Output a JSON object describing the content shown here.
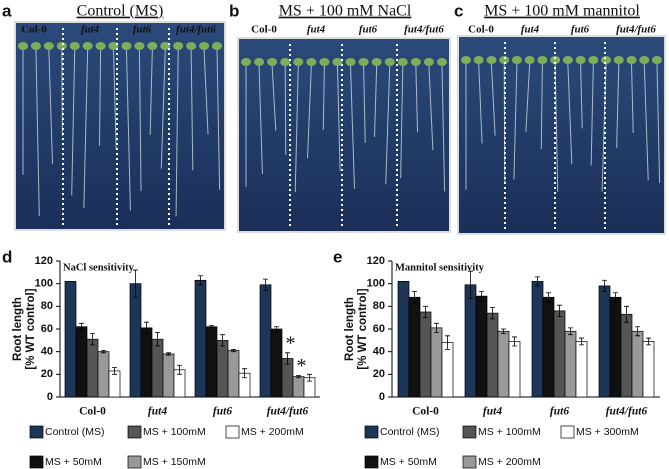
{
  "panels": [
    {
      "letter": "a",
      "title": "Control (MS)",
      "genotypes": [
        "Col-0",
        "fut4",
        "fut6",
        "fut4/fut6"
      ]
    },
    {
      "letter": "b",
      "title": "MS + 100 mM NaCl",
      "genotypes": [
        "Col-0",
        "fut4",
        "fut6",
        "fut4/fut6"
      ]
    },
    {
      "letter": "c",
      "title": "MS + 100 mM mannitol",
      "genotypes": [
        "Col-0",
        "fut4",
        "fut6",
        "fut4/fut6"
      ]
    }
  ],
  "chart_data": [
    {
      "type": "bar",
      "letter": "d",
      "subtitle": "NaCl sensitivity",
      "y_label": [
        "Root length",
        "[% WT control]"
      ],
      "categories": [
        "Col-0",
        "fut4",
        "fut6",
        "fut4/fut6"
      ],
      "ylim": [
        0,
        120
      ],
      "yticks": [
        0,
        20,
        40,
        60,
        80,
        100,
        120
      ],
      "series": [
        {
          "name": "Control (MS)",
          "color": "#1d3557",
          "values": [
            102,
            100,
            103,
            99
          ],
          "errors": [
            0,
            12,
            4,
            5
          ]
        },
        {
          "name": "MS + 50mM",
          "color": "#111111",
          "values": [
            62,
            61,
            62,
            60
          ],
          "errors": [
            3,
            5,
            1,
            2
          ]
        },
        {
          "name": "MS + 100mM",
          "color": "#555555",
          "values": [
            51,
            51,
            50,
            34
          ],
          "errors": [
            5,
            6,
            5,
            5
          ],
          "labels": [
            null,
            null,
            null,
            "*"
          ]
        },
        {
          "name": "MS + 150mM",
          "color": "#999999",
          "values": [
            40,
            38,
            41,
            18
          ],
          "errors": [
            1,
            1,
            1,
            1
          ],
          "labels": [
            null,
            null,
            null,
            "*"
          ]
        },
        {
          "name": "MS + 200mM",
          "color": "#ffffff",
          "values": [
            23,
            24,
            21,
            17
          ],
          "errors": [
            3,
            4,
            4,
            3
          ]
        }
      ]
    },
    {
      "type": "bar",
      "letter": "e",
      "subtitle": "Mannitol sensitivity",
      "y_label": [
        "Root length",
        "[% WT control]"
      ],
      "categories": [
        "Col-0",
        "fut4",
        "fut6",
        "fut4/fut6"
      ],
      "ylim": [
        0,
        120
      ],
      "yticks": [
        0,
        20,
        40,
        60,
        80,
        100,
        120
      ],
      "series": [
        {
          "name": "Control (MS)",
          "color": "#1d3557",
          "values": [
            102,
            99,
            102,
            98
          ],
          "errors": [
            0,
            12,
            4,
            5
          ]
        },
        {
          "name": "MS + 50mM",
          "color": "#111111",
          "values": [
            88,
            89,
            88,
            88
          ],
          "errors": [
            5,
            4,
            4,
            4
          ]
        },
        {
          "name": "MS + 100mM",
          "color": "#555555",
          "values": [
            75,
            74,
            76,
            73
          ],
          "errors": [
            5,
            5,
            5,
            7
          ]
        },
        {
          "name": "MS + 200mM",
          "color": "#999999",
          "values": [
            61,
            58,
            58,
            58
          ],
          "errors": [
            4,
            2,
            3,
            4
          ]
        },
        {
          "name": "MS + 300mM",
          "color": "#ffffff",
          "values": [
            48,
            49,
            49,
            49
          ],
          "errors": [
            6,
            4,
            3,
            3
          ]
        }
      ]
    }
  ]
}
